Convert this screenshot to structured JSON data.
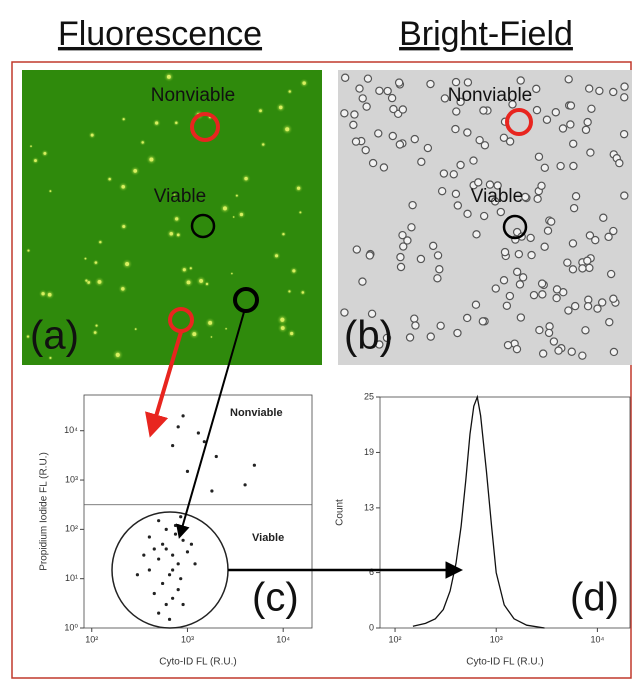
{
  "header": {
    "left": "Fluorescence",
    "right": "Bright-Field"
  },
  "panels": {
    "a": {
      "label": "(a)",
      "nonviable": "Nonviable",
      "viable": "Viable"
    },
    "b": {
      "label": "(b)",
      "nonviable": "Nonviable",
      "viable": "Viable"
    }
  },
  "chart_data": [
    {
      "type": "scatter",
      "panel_label": "(c)",
      "x_label": "Cyto-ID FL (R.U.)",
      "y_label": "Propidium Iodide FL (R.U.)",
      "annotations": [
        "Nonviable",
        "Viable"
      ],
      "log_x": true,
      "log_y": true,
      "color": "#222",
      "gate": 316,
      "xlim": [
        83,
        20000
      ],
      "ylim": [
        1,
        53000
      ],
      "xticks": [
        {
          "value": 100,
          "label": "10²"
        },
        {
          "value": 1000,
          "label": "10³"
        },
        {
          "value": 10000,
          "label": "10⁴"
        }
      ],
      "yticks": [
        {
          "value": 1,
          "label": "10⁰"
        },
        {
          "value": 10,
          "label": "10¹"
        },
        {
          "value": 100,
          "label": "10²"
        },
        {
          "value": 1000,
          "label": "10³"
        },
        {
          "value": 10000,
          "label": "10⁴"
        }
      ],
      "x": [
        400,
        500,
        600,
        700,
        800,
        900,
        1000,
        550,
        650,
        750,
        450,
        850,
        350,
        1200,
        600,
        700,
        500,
        800,
        900,
        650,
        300,
        1100,
        750,
        550,
        400,
        700,
        600,
        500,
        850,
        450,
        1500,
        2000,
        900,
        1300,
        700,
        1000,
        4000,
        5000,
        1800,
        800
      ],
      "y": [
        15,
        25,
        40,
        30,
        20,
        60,
        35,
        8,
        12,
        80,
        5,
        10,
        30,
        20,
        3,
        4,
        2,
        6,
        3,
        1.5,
        12,
        50,
        120,
        50,
        70,
        15,
        100,
        150,
        180,
        40,
        6000,
        3000,
        20000,
        9000,
        5000,
        1500,
        800,
        2000,
        600,
        12000
      ]
    },
    {
      "type": "line",
      "panel_label": "(d)",
      "x_label": "Cyto-ID FL (R.U.)",
      "y_label": "Count",
      "log_x": true,
      "color": "#111",
      "xlim": [
        71,
        21000
      ],
      "ylim": [
        0,
        25
      ],
      "xticks": [
        {
          "value": 100,
          "label": "10²"
        },
        {
          "value": 1000,
          "label": "10³"
        },
        {
          "value": 10000,
          "label": "10⁴"
        }
      ],
      "yticks": [
        0,
        6,
        13,
        19,
        25
      ],
      "x": [
        150,
        200,
        250,
        300,
        350,
        400,
        450,
        500,
        550,
        600,
        650,
        700,
        800,
        900,
        1000,
        1200,
        1500,
        2000,
        3000
      ],
      "values": [
        0.2,
        0.5,
        1,
        2,
        4,
        7,
        11,
        16,
        21,
        24,
        25,
        23,
        17,
        11,
        6,
        2.5,
        1,
        0.3,
        0
      ]
    }
  ]
}
